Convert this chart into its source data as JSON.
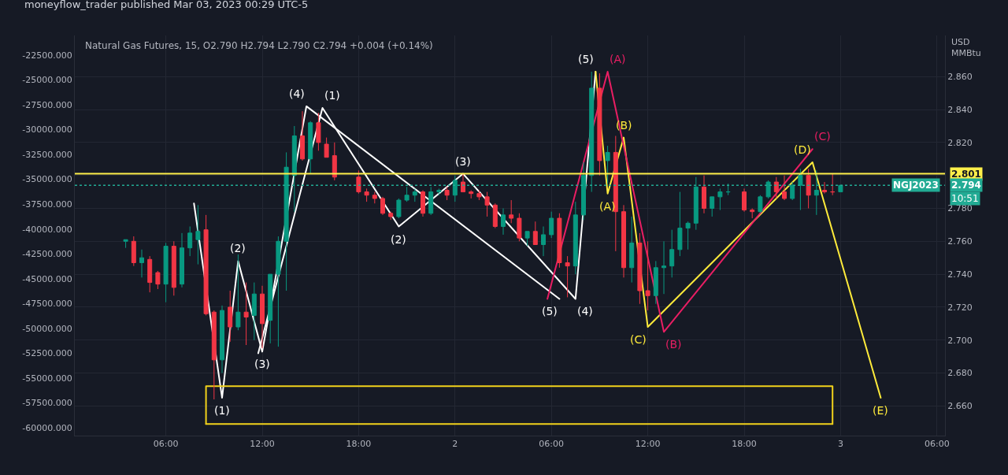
{
  "chart_data": {
    "type": "candlestick",
    "title": "moneyflow_trader published Mar 03, 2023 00:29 UTC-5",
    "subtitle": "Natural Gas Futures, 15, O2.790 H2.794 L2.790 C2.794 +0.004 (+0.14%)",
    "ylabel": "USD MMBtu",
    "x": [
      "2023-03-01T03:30",
      "2023-03-01T04:00",
      "2023-03-01T04:30",
      "2023-03-01T05:00",
      "2023-03-01T05:30",
      "2023-03-01T06:00",
      "2023-03-01T06:30",
      "2023-03-01T07:00",
      "2023-03-01T07:30",
      "2023-03-01T08:00",
      "2023-03-01T08:30",
      "2023-03-01T09:00",
      "2023-03-01T09:30",
      "2023-03-01T10:00",
      "2023-03-01T10:30",
      "2023-03-01T11:00",
      "2023-03-01T11:30",
      "2023-03-01T12:00",
      "2023-03-01T12:30",
      "2023-03-01T13:00",
      "2023-03-01T13:30",
      "2023-03-01T14:00",
      "2023-03-01T14:30",
      "2023-03-01T15:00",
      "2023-03-01T15:30",
      "2023-03-01T16:00",
      "2023-03-01T16:30",
      "2023-03-01T18:00",
      "2023-03-01T18:30",
      "2023-03-01T19:00",
      "2023-03-01T19:30",
      "2023-03-01T20:00",
      "2023-03-01T20:30",
      "2023-03-01T21:00",
      "2023-03-01T21:30",
      "2023-03-01T22:00",
      "2023-03-01T22:30",
      "2023-03-01T23:00",
      "2023-03-01T23:30",
      "2023-03-02T00:00",
      "2023-03-02T00:30",
      "2023-03-02T01:00",
      "2023-03-02T01:30",
      "2023-03-02T02:00",
      "2023-03-02T02:30",
      "2023-03-02T03:00",
      "2023-03-02T03:30",
      "2023-03-02T04:00",
      "2023-03-02T04:30",
      "2023-03-02T05:00",
      "2023-03-02T05:30",
      "2023-03-02T06:00",
      "2023-03-02T06:30",
      "2023-03-02T07:00",
      "2023-03-02T07:30",
      "2023-03-02T08:00",
      "2023-03-02T08:30",
      "2023-03-02T09:00",
      "2023-03-02T09:30",
      "2023-03-02T10:00",
      "2023-03-02T10:30",
      "2023-03-02T11:00",
      "2023-03-02T11:30",
      "2023-03-02T12:00",
      "2023-03-02T12:30",
      "2023-03-02T13:00",
      "2023-03-02T13:30",
      "2023-03-02T14:00",
      "2023-03-02T14:30",
      "2023-03-02T15:00",
      "2023-03-02T15:30",
      "2023-03-02T16:00",
      "2023-03-02T16:30",
      "2023-03-02T17:00",
      "2023-03-02T18:00",
      "2023-03-02T18:30",
      "2023-03-02T19:00",
      "2023-03-02T19:30",
      "2023-03-02T20:00",
      "2023-03-02T20:30",
      "2023-03-02T21:00",
      "2023-03-02T21:30",
      "2023-03-02T22:00",
      "2023-03-02T22:30",
      "2023-03-02T23:00",
      "2023-03-02T23:30",
      "2023-03-03T00:00"
    ],
    "ohlc": [
      [
        2.76,
        2.761,
        2.756,
        2.761
      ],
      [
        2.76,
        2.763,
        2.745,
        2.747
      ],
      [
        2.747,
        2.755,
        2.738,
        2.75
      ],
      [
        2.749,
        2.751,
        2.729,
        2.735
      ],
      [
        2.741,
        2.742,
        2.731,
        2.734
      ],
      [
        2.734,
        2.759,
        2.723,
        2.757
      ],
      [
        2.757,
        2.76,
        2.727,
        2.732
      ],
      [
        2.734,
        2.765,
        2.732,
        2.756
      ],
      [
        2.756,
        2.769,
        2.751,
        2.765
      ],
      [
        2.761,
        2.782,
        2.746,
        2.766
      ],
      [
        2.767,
        2.776,
        2.715,
        2.716
      ],
      [
        2.717,
        2.718,
        2.664,
        2.688
      ],
      [
        2.688,
        2.721,
        2.68,
        2.718
      ],
      [
        2.72,
        2.73,
        2.699,
        2.708
      ],
      [
        2.708,
        2.752,
        2.706,
        2.717
      ],
      [
        2.717,
        2.735,
        2.697,
        2.714
      ],
      [
        2.715,
        2.735,
        2.7,
        2.728
      ],
      [
        2.728,
        2.733,
        2.695,
        2.71
      ],
      [
        2.712,
        2.74,
        2.698,
        2.74
      ],
      [
        2.74,
        2.763,
        2.696,
        2.76
      ],
      [
        2.76,
        2.814,
        2.73,
        2.805
      ],
      [
        2.8,
        2.83,
        2.778,
        2.824
      ],
      [
        2.824,
        2.839,
        2.809,
        2.81
      ],
      [
        2.81,
        2.833,
        2.801,
        2.832
      ],
      [
        2.832,
        2.838,
        2.815,
        2.82
      ],
      [
        2.819,
        2.823,
        2.811,
        2.811
      ],
      [
        2.812,
        2.82,
        2.797,
        2.799
      ],
      [
        2.799,
        2.803,
        2.789,
        2.79
      ],
      [
        2.79,
        2.792,
        2.784,
        2.788
      ],
      [
        2.788,
        2.79,
        2.783,
        2.786
      ],
      [
        2.786,
        2.787,
        2.776,
        2.777
      ],
      [
        2.777,
        2.778,
        2.773,
        2.775
      ],
      [
        2.775,
        2.786,
        2.774,
        2.785
      ],
      [
        2.785,
        2.793,
        2.784,
        2.788
      ],
      [
        2.788,
        2.792,
        2.784,
        2.79
      ],
      [
        2.79,
        2.791,
        2.775,
        2.777
      ],
      [
        2.777,
        2.793,
        2.776,
        2.79
      ],
      [
        2.79,
        2.792,
        2.788,
        2.791
      ],
      [
        2.791,
        2.793,
        2.785,
        2.788
      ],
      [
        2.788,
        2.8,
        2.784,
        2.797
      ],
      [
        2.796,
        2.801,
        2.79,
        2.79
      ],
      [
        2.79,
        2.791,
        2.786,
        2.789
      ],
      [
        2.789,
        2.791,
        2.785,
        2.787
      ],
      [
        2.787,
        2.79,
        2.775,
        2.782
      ],
      [
        2.782,
        2.783,
        2.768,
        2.769
      ],
      [
        2.769,
        2.78,
        2.764,
        2.776
      ],
      [
        2.776,
        2.785,
        2.771,
        2.774
      ],
      [
        2.774,
        2.777,
        2.76,
        2.762
      ],
      [
        2.762,
        2.766,
        2.757,
        2.766
      ],
      [
        2.766,
        2.772,
        2.758,
        2.758
      ],
      [
        2.758,
        2.769,
        2.751,
        2.764
      ],
      [
        2.764,
        2.778,
        2.762,
        2.774
      ],
      [
        2.774,
        2.777,
        2.744,
        2.747
      ],
      [
        2.747,
        2.751,
        2.726,
        2.745
      ],
      [
        2.745,
        2.784,
        2.74,
        2.776
      ],
      [
        2.776,
        2.808,
        2.773,
        2.8
      ],
      [
        2.8,
        2.863,
        2.79,
        2.853
      ],
      [
        2.853,
        2.862,
        2.8,
        2.809
      ],
      [
        2.809,
        2.818,
        2.795,
        2.814
      ],
      [
        2.814,
        2.824,
        2.754,
        2.778
      ],
      [
        2.778,
        2.782,
        2.738,
        2.744
      ],
      [
        2.744,
        2.775,
        2.735,
        2.759
      ],
      [
        2.759,
        2.765,
        2.722,
        2.73
      ],
      [
        2.73,
        2.76,
        2.718,
        2.727
      ],
      [
        2.727,
        2.748,
        2.722,
        2.744
      ],
      [
        2.744,
        2.76,
        2.728,
        2.745
      ],
      [
        2.745,
        2.767,
        2.738,
        2.755
      ],
      [
        2.755,
        2.79,
        2.751,
        2.768
      ],
      [
        2.768,
        2.772,
        2.755,
        2.771
      ],
      [
        2.771,
        2.799,
        2.767,
        2.793
      ],
      [
        2.793,
        2.8,
        2.777,
        2.78
      ],
      [
        2.78,
        2.787,
        2.775,
        2.787
      ],
      [
        2.787,
        2.792,
        2.779,
        2.79
      ],
      [
        2.79,
        2.795,
        2.788,
        2.79
      ],
      [
        2.79,
        2.792,
        2.778,
        2.779
      ],
      [
        2.779,
        2.78,
        2.774,
        2.778
      ],
      [
        2.778,
        2.788,
        2.777,
        2.787
      ],
      [
        2.787,
        2.797,
        2.786,
        2.796
      ],
      [
        2.796,
        2.799,
        2.786,
        2.79
      ],
      [
        2.79,
        2.8,
        2.785,
        2.786
      ],
      [
        2.786,
        2.796,
        2.785,
        2.794
      ],
      [
        2.794,
        2.804,
        2.779,
        2.8
      ],
      [
        2.8,
        2.804,
        2.78,
        2.788
      ],
      [
        2.788,
        2.803,
        2.776,
        2.791
      ],
      [
        2.791,
        2.796,
        2.789,
        2.79
      ],
      [
        2.79,
        2.801,
        2.788,
        2.79
      ],
      [
        2.79,
        2.794,
        2.79,
        2.794
      ]
    ],
    "colors": [
      "#089981",
      "#f23645",
      "#089981",
      "#f23645",
      "#f23645",
      "#089981",
      "#f23645",
      "#089981",
      "#089981",
      "#089981",
      "#f23645",
      "#f23645",
      "#089981",
      "#f23645",
      "#089981",
      "#f23645",
      "#089981",
      "#f23645",
      "#089981",
      "#089981",
      "#089981",
      "#089981",
      "#f23645",
      "#089981",
      "#f23645",
      "#f23645",
      "#f23645",
      "#f23645",
      "#f23645",
      "#f23645",
      "#f23645",
      "#f23645",
      "#089981",
      "#089981",
      "#089981",
      "#f23645",
      "#089981",
      "#089981",
      "#f23645",
      "#089981",
      "#f23645",
      "#f23645",
      "#f23645",
      "#f23645",
      "#f23645",
      "#089981",
      "#f23645",
      "#f23645",
      "#089981",
      "#f23645",
      "#089981",
      "#089981",
      "#f23645",
      "#f23645",
      "#089981",
      "#089981",
      "#089981",
      "#f23645",
      "#089981",
      "#f23645",
      "#f23645",
      "#089981",
      "#f23645",
      "#f23645",
      "#089981",
      "#089981",
      "#089981",
      "#089981",
      "#089981",
      "#089981",
      "#f23645",
      "#089981",
      "#089981",
      "#089981",
      "#f23645",
      "#f23645",
      "#089981",
      "#089981",
      "#f23645",
      "#f23645",
      "#089981",
      "#089981",
      "#f23645",
      "#089981",
      "#f23645",
      "#f23645",
      "#089981"
    ],
    "series": [
      {
        "type": "line",
        "color": "#ffffff",
        "x": [
          "2023-03-01T07:45",
          "2023-03-01T09:30",
          "2023-03-01T10:30",
          "2023-03-01T12:00",
          "2023-03-01T14:45",
          "2023-03-02T06:30"
        ],
        "values": [
          2.783,
          2.665,
          2.748,
          2.693,
          2.842,
          2.725
        ]
      },
      {
        "type": "line",
        "color": "#ffffff",
        "x": [
          "2023-03-01T11:45",
          "2023-03-01T15:45",
          "2023-03-01T20:30",
          "2023-03-02T00:30",
          "2023-03-02T07:30",
          "2023-03-02T08:45"
        ],
        "values": [
          2.692,
          2.841,
          2.769,
          2.801,
          2.725,
          2.863
        ]
      },
      {
        "type": "line",
        "color": "#ffeb3b",
        "x": [
          "2023-03-02T08:45",
          "2023-03-02T09:30",
          "2023-03-02T10:30",
          "2023-03-02T12:00",
          "2023-03-02T22:15",
          "2023-03-03T02:30"
        ],
        "values": [
          2.863,
          2.789,
          2.823,
          2.708,
          2.808,
          2.665
        ]
      },
      {
        "type": "line",
        "color": "#e91e63",
        "x": [
          "2023-03-02T05:45",
          "2023-03-02T09:30",
          "2023-03-02T13:00",
          "2023-03-02T22:15"
        ],
        "values": [
          2.725,
          2.863,
          2.705,
          2.816
        ]
      },
      {
        "type": "line",
        "color": "#f2d21b",
        "x": [
          "2023-03-01T08:30",
          "2023-03-01T08:30",
          "2023-03-02T23:30",
          "2023-03-02T23:30"
        ],
        "values": [
          2.649,
          2.672,
          2.672,
          2.649
        ]
      },
      {
        "type": "line",
        "color": "#f2d21b",
        "x": [
          "2023-03-01T08:30",
          "2023-03-02T23:30"
        ],
        "values": [
          2.649,
          2.649
        ]
      }
    ],
    "ref_lines": [
      {
        "axis": "y",
        "value": 2.801,
        "label": "2.801",
        "color": "#fff04a"
      },
      {
        "axis": "y",
        "value": 2.794,
        "label": "2.794",
        "color": "#22ab94",
        "line_style": "dotted"
      }
    ],
    "annotations": [
      "NGJ2023",
      "10:51",
      {
        "text": "(1)",
        "x": "2023-03-01T09:30",
        "y": 2.665
      },
      {
        "text": "(2)",
        "x": "2023-03-01T10:30",
        "y": 2.748
      },
      {
        "text": "(3)",
        "x": "2023-03-01T12:00",
        "y": 2.693
      },
      {
        "text": "(4)",
        "x": "2023-03-01T14:45",
        "y": 2.842
      },
      {
        "text": "(5)",
        "x": "2023-03-02T06:30",
        "y": 2.725
      },
      {
        "text": "(1)",
        "x": "2023-03-01T15:45",
        "y": 2.841
      },
      {
        "text": "(2)",
        "x": "2023-03-01T20:30",
        "y": 2.769
      },
      {
        "text": "(3)",
        "x": "2023-03-02T00:30",
        "y": 2.801
      },
      {
        "text": "(4)",
        "x": "2023-03-02T07:30",
        "y": 2.725
      },
      {
        "text": "(5)",
        "x": "2023-03-02T08:45",
        "y": 2.863
      },
      {
        "text": "(A)",
        "x": "2023-03-02T09:30",
        "y": 2.789
      },
      {
        "text": "(B)",
        "x": "2023-03-02T10:30",
        "y": 2.823
      },
      {
        "text": "(C)",
        "x": "2023-03-02T12:00",
        "y": 2.708
      },
      {
        "text": "(D)",
        "x": "2023-03-02T22:15",
        "y": 2.808
      },
      {
        "text": "(E)",
        "x": "2023-03-03T02:30",
        "y": 2.665
      },
      {
        "text": "(A)",
        "x": "2023-03-02T09:30",
        "y": 2.863
      },
      {
        "text": "(B)",
        "x": "2023-03-02T13:00",
        "y": 2.705
      },
      {
        "text": "(C)",
        "x": "2023-03-02T22:15",
        "y": 2.816
      }
    ],
    "xlim": [
      "2023-03-01T00:20",
      "2023-03-03T06:30"
    ],
    "xticks": [
      {
        "value": "2023-03-01T06:00",
        "label": "06:00"
      },
      {
        "value": "2023-03-01T12:00",
        "label": "12:00"
      },
      {
        "value": "2023-03-01T18:00",
        "label": "18:00"
      },
      {
        "value": "2023-03-02T00:00",
        "label": "2"
      },
      {
        "value": "2023-03-02T06:00",
        "label": "06:00"
      },
      {
        "value": "2023-03-02T12:00",
        "label": "12:00"
      },
      {
        "value": "2023-03-02T18:00",
        "label": "18:00"
      },
      {
        "value": "2023-03-03T00:00",
        "label": "3"
      },
      {
        "value": "2023-03-03T06:00",
        "label": "06:00"
      }
    ],
    "ylim": [
      2.642,
      2.885
    ],
    "yticks": [
      {
        "value": 2.66,
        "label": "2.660"
      },
      {
        "value": 2.68,
        "label": "2.680"
      },
      {
        "value": 2.7,
        "label": "2.700"
      },
      {
        "value": 2.72,
        "label": "2.720"
      },
      {
        "value": 2.74,
        "label": "2.740"
      },
      {
        "value": 2.76,
        "label": "2.760"
      },
      {
        "value": 2.78,
        "label": "2.780"
      },
      {
        "value": 2.8,
        "label": null
      },
      {
        "value": 2.82,
        "label": "2.820"
      },
      {
        "value": 2.84,
        "label": "2.840"
      },
      {
        "value": 2.86,
        "label": "2.860"
      }
    ],
    "y2lim": [
      -60784,
      -20539
    ],
    "y2ticks": [
      {
        "value": -22500,
        "label": "-22500.000"
      },
      {
        "value": -25000,
        "label": "-25000.000"
      },
      {
        "value": -27500,
        "label": "-27500.000"
      },
      {
        "value": -30000,
        "label": "-30000.000"
      },
      {
        "value": -32500,
        "label": "-32500.000"
      },
      {
        "value": -35000,
        "label": "-35000.000"
      },
      {
        "value": -37500,
        "label": "-37500.000"
      },
      {
        "value": -40000,
        "label": "-40000.000"
      },
      {
        "value": -42500,
        "label": "-42500.000"
      },
      {
        "value": -45000,
        "label": "-45000.000"
      },
      {
        "value": -47500,
        "label": "-47500.000"
      },
      {
        "value": -50000,
        "label": "-50000.000"
      },
      {
        "value": -52500,
        "label": "-52500.000"
      },
      {
        "value": -55000,
        "label": "-55000.000"
      },
      {
        "value": -57500,
        "label": "-57500.000"
      },
      {
        "value": -60000,
        "label": "-60000.000"
      }
    ],
    "grid": true
  }
}
